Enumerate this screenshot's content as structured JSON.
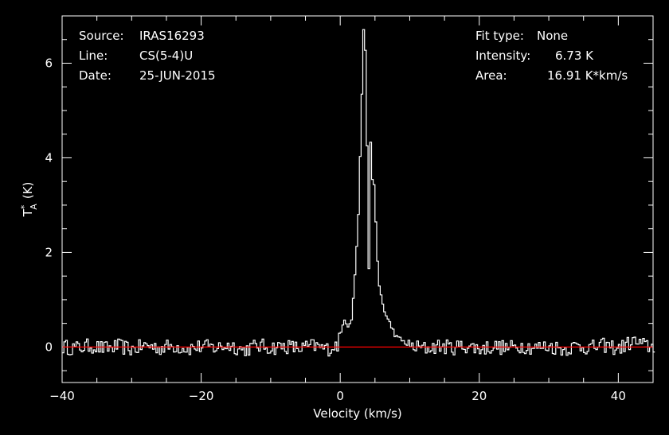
{
  "header": {
    "source_label": "Source:",
    "source_value": "IRAS16293",
    "line_label": "Line:",
    "line_value": "CS(5-4)U",
    "date_label": "Date:",
    "date_value": "25-JUN-2015",
    "fit_label": "Fit type:",
    "fit_value": "None",
    "intensity_label": "Intensity:",
    "intensity_value": "6.73 K",
    "area_label": "Area:",
    "area_value": "16.91 K*km/s"
  },
  "chart_data": {
    "type": "line",
    "title": "",
    "xlabel": "Velocity (km/s)",
    "ylabel_main": "T",
    "ylabel_sup": "*",
    "ylabel_sub": "A",
    "ylabel_unit": "(K)",
    "xlim": [
      -40,
      45
    ],
    "ylim": [
      -0.75,
      7.0
    ],
    "x_ticks": [
      -40,
      -20,
      0,
      20,
      40
    ],
    "x_tick_labels": [
      "−40",
      "−20",
      "0",
      "20",
      "40"
    ],
    "y_ticks": [
      0,
      2,
      4,
      6
    ],
    "y_tick_labels": [
      "0",
      "2",
      "4",
      "6"
    ],
    "grid": false,
    "colors": {
      "spectrum": "#ffffff",
      "baseline": "#ff0000",
      "axes": "#ffffff"
    },
    "series": [
      {
        "style": "histogram",
        "x": [
          -40.0,
          -38.0,
          -36.0,
          -34.0,
          -32.0,
          -30.0,
          -28.0,
          -26.0,
          -24.0,
          -22.0,
          -20.0,
          -18.0,
          -16.0,
          -14.0,
          -12.0,
          -10.0,
          -8.0,
          -6.0,
          -4.0,
          -2.0,
          -1.0,
          0.0,
          0.5,
          1.0,
          1.5,
          2.0,
          2.5,
          3.0,
          3.25,
          3.5,
          3.75,
          4.0,
          4.25,
          4.5,
          4.75,
          5.0,
          5.25,
          5.5,
          6.0,
          6.5,
          7.0,
          7.5,
          8.0,
          9.0,
          10.0,
          12.0,
          14.0,
          16.0,
          18.0,
          20.0,
          22.0,
          24.0,
          26.0,
          28.0,
          30.0,
          32.0,
          34.0,
          36.0,
          38.0,
          40.0,
          42.0,
          44.0,
          45.0
        ],
        "y": [
          0.02,
          -0.08,
          0.1,
          -0.12,
          0.05,
          -0.15,
          0.12,
          -0.05,
          0.08,
          -0.1,
          0.04,
          -0.06,
          0.15,
          -0.2,
          0.1,
          -0.04,
          0.06,
          -0.1,
          0.08,
          -0.15,
          0.05,
          0.3,
          0.62,
          0.45,
          0.62,
          1.5,
          2.8,
          5.3,
          6.73,
          6.3,
          4.3,
          1.6,
          4.28,
          3.6,
          3.4,
          2.6,
          1.8,
          1.3,
          0.9,
          0.65,
          0.5,
          0.35,
          0.2,
          0.12,
          0.05,
          -0.1,
          0.06,
          -0.04,
          0.08,
          -0.12,
          0.05,
          -0.08,
          0.1,
          -0.05,
          0.06,
          -0.15,
          0.08,
          -0.05,
          0.12,
          -0.1,
          0.4,
          0.05,
          0.0
        ]
      },
      {
        "style": "line",
        "x": [
          -40,
          45
        ],
        "y": [
          0,
          0
        ]
      }
    ]
  }
}
